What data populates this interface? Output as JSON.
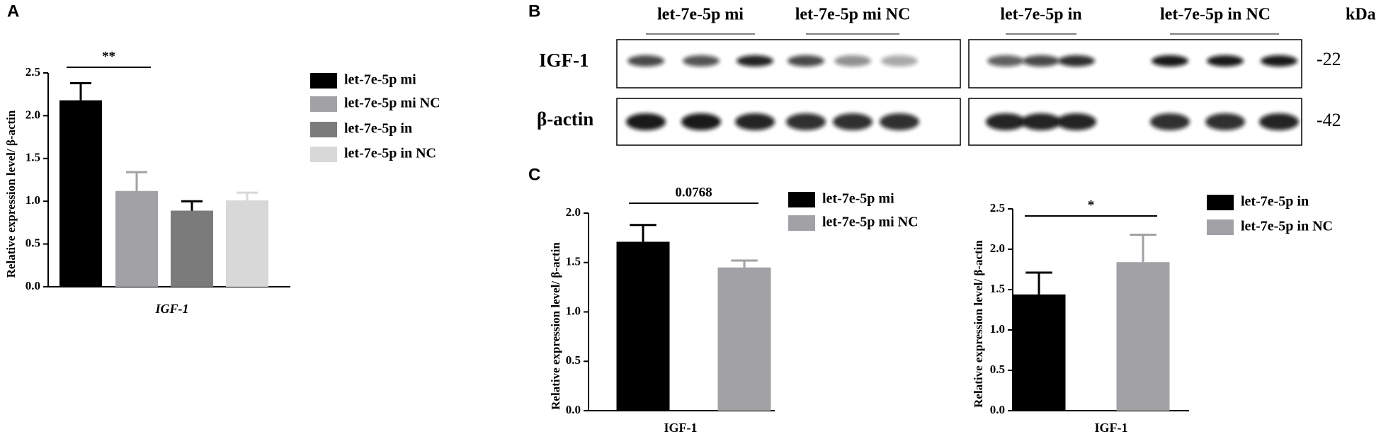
{
  "panel_labels": [
    "A",
    "B",
    "C"
  ],
  "blot": {
    "groups": [
      "let-7e-5p mi",
      "let-7e-5p mi NC",
      "let-7e-5p in",
      "let-7e-5p in NC"
    ],
    "unit": "kDa",
    "rows": [
      {
        "label": "IGF-1",
        "size": "-22"
      },
      {
        "label": "β-actin",
        "size": "-42"
      }
    ]
  },
  "chart_data": [
    {
      "type": "bar",
      "ylabel": "Relative expression level/ β-actin",
      "categories": [
        "IGF-1"
      ],
      "annotation": "**",
      "ylim": [
        0,
        2.5
      ],
      "yticks": [
        {
          "value": 0,
          "label": "0.0"
        },
        {
          "value": 0.5,
          "label": "0.5"
        },
        {
          "value": 1,
          "label": "1.0"
        },
        {
          "value": 1.5,
          "label": "1.5"
        },
        {
          "value": 2,
          "label": "2.0"
        },
        {
          "value": 2.5,
          "label": "2.5"
        }
      ],
      "series": [
        {
          "name": "let-7e-5p mi",
          "color": "#000000",
          "values": [
            2.18
          ],
          "errors": [
            0.2
          ]
        },
        {
          "name": "let-7e-5p mi NC",
          "color": "#a2a2a6",
          "values": [
            1.12
          ],
          "errors": [
            0.22
          ]
        },
        {
          "name": "let-7e-5p in",
          "color": "#7b7b7b",
          "values": [
            0.89
          ],
          "errors": [
            0.11
          ]
        },
        {
          "name": "let-7e-5p in NC",
          "color": "#d8d8d8",
          "values": [
            1.01
          ],
          "errors": [
            0.09
          ]
        }
      ]
    },
    {
      "type": "bar",
      "ylabel": "Relative expression level/ β-actin",
      "categories": [
        "IGF-1"
      ],
      "annotation": "0.0768",
      "ylim": [
        0,
        2.0
      ],
      "yticks": [
        {
          "value": 0,
          "label": "0.0"
        },
        {
          "value": 0.5,
          "label": "0.5"
        },
        {
          "value": 1,
          "label": "1.0"
        },
        {
          "value": 1.5,
          "label": "1.5"
        },
        {
          "value": 2,
          "label": "2.0"
        }
      ],
      "series": [
        {
          "name": "let-7e-5p mi",
          "color": "#000000",
          "values": [
            1.71
          ],
          "errors": [
            0.17
          ]
        },
        {
          "name": "let-7e-5p mi NC",
          "color": "#a2a2a6",
          "values": [
            1.45
          ],
          "errors": [
            0.07
          ]
        }
      ]
    },
    {
      "type": "bar",
      "ylabel": "Relative expression level/ β-actin",
      "categories": [
        "IGF-1"
      ],
      "annotation": "*",
      "ylim": [
        0,
        2.5
      ],
      "yticks": [
        {
          "value": 0,
          "label": "0.0"
        },
        {
          "value": 0.5,
          "label": "0.5"
        },
        {
          "value": 1,
          "label": "1.0"
        },
        {
          "value": 1.5,
          "label": "1.5"
        },
        {
          "value": 2,
          "label": "2.0"
        },
        {
          "value": 2.5,
          "label": "2.5"
        }
      ],
      "series": [
        {
          "name": "let-7e-5p in",
          "color": "#000000",
          "values": [
            1.44
          ],
          "errors": [
            0.27
          ]
        },
        {
          "name": "let-7e-5p in NC",
          "color": "#a2a2a6",
          "values": [
            1.84
          ],
          "errors": [
            0.34
          ]
        }
      ]
    }
  ]
}
